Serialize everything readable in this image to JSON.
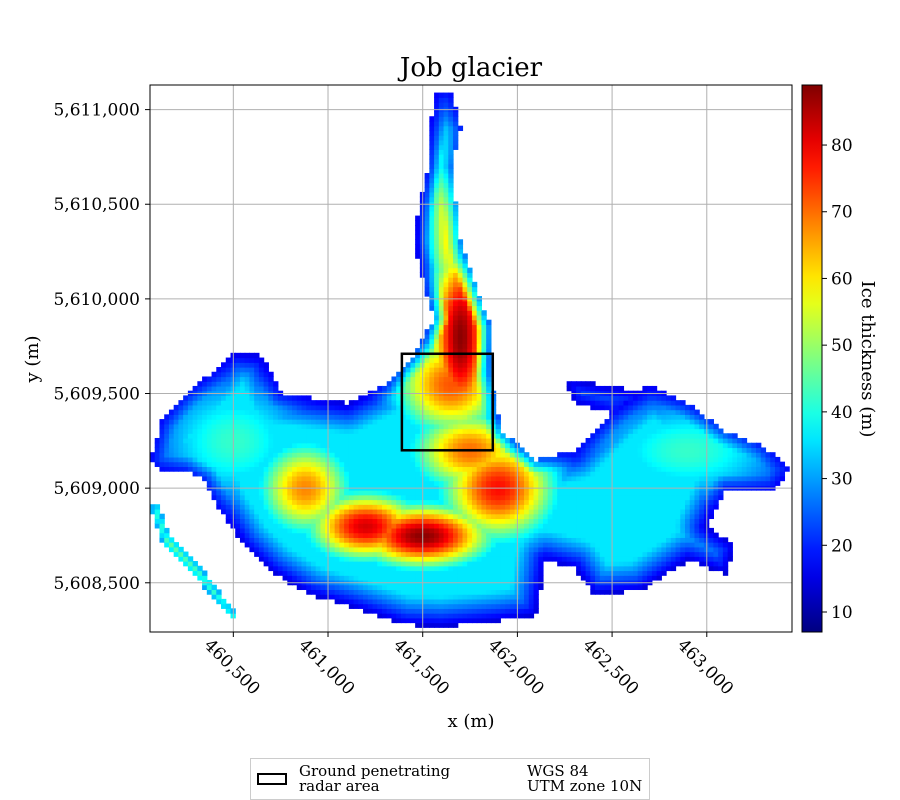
{
  "chart_data": {
    "type": "heatmap",
    "title": "Job glacier",
    "xlabel": "x (m)",
    "ylabel": "y (m)",
    "xlim": [
      460060,
      463450
    ],
    "ylim": [
      5608240,
      5611130
    ],
    "x_ticks": [
      460500,
      461000,
      461500,
      462000,
      462500,
      463000
    ],
    "x_tick_labels": [
      "460,500",
      "461,000",
      "461,500",
      "462,000",
      "462,500",
      "463,000"
    ],
    "y_ticks": [
      5608500,
      5609000,
      5609500,
      5610000,
      5610500,
      5611000
    ],
    "y_tick_labels": [
      "5,608,500",
      "5,609,000",
      "5,609,500",
      "5,610,000",
      "5,610,500",
      "5,611,000"
    ],
    "grid": true,
    "colormap": "jet",
    "colorbar": {
      "label": "Ice thickness (m)",
      "range": [
        7,
        89
      ],
      "ticks": [
        10,
        20,
        30,
        40,
        50,
        60,
        70,
        80
      ],
      "tick_labels": [
        "10",
        "20",
        "30",
        "40",
        "50",
        "60",
        "70",
        "80"
      ]
    },
    "ice_thickness_field": {
      "units": "m",
      "outline_points_m": [
        [
          461560,
          5611100
        ],
        [
          461650,
          5611100
        ],
        [
          461700,
          5610900
        ],
        [
          461650,
          5610700
        ],
        [
          461700,
          5610300
        ],
        [
          461800,
          5610000
        ],
        [
          461860,
          5609850
        ],
        [
          461850,
          5609600
        ],
        [
          461920,
          5609300
        ],
        [
          462100,
          5609150
        ],
        [
          462300,
          5609200
        ],
        [
          462500,
          5609400
        ],
        [
          462700,
          5609550
        ],
        [
          462900,
          5609450
        ],
        [
          463100,
          5609300
        ],
        [
          463300,
          5609220
        ],
        [
          463440,
          5609100
        ],
        [
          463350,
          5608990
        ],
        [
          463100,
          5609000
        ],
        [
          463000,
          5608800
        ],
        [
          463150,
          5608700
        ],
        [
          463100,
          5608550
        ],
        [
          462900,
          5608620
        ],
        [
          462650,
          5608460
        ],
        [
          462400,
          5608440
        ],
        [
          462300,
          5608580
        ],
        [
          462150,
          5608620
        ],
        [
          462100,
          5608330
        ],
        [
          461900,
          5608300
        ],
        [
          461600,
          5608270
        ],
        [
          461400,
          5608280
        ],
        [
          461100,
          5608380
        ],
        [
          460900,
          5608440
        ],
        [
          460700,
          5608560
        ],
        [
          460550,
          5608700
        ],
        [
          460420,
          5608900
        ],
        [
          460350,
          5609050
        ],
        [
          460250,
          5609100
        ],
        [
          460100,
          5609100
        ],
        [
          460060,
          5609150
        ],
        [
          460120,
          5609350
        ],
        [
          460250,
          5609500
        ],
        [
          460400,
          5609620
        ],
        [
          460500,
          5609720
        ],
        [
          460650,
          5609700
        ],
        [
          460750,
          5609500
        ],
        [
          461100,
          5609450
        ],
        [
          461300,
          5609550
        ],
        [
          461450,
          5609700
        ],
        [
          461560,
          5609900
        ],
        [
          461500,
          5610100
        ],
        [
          461450,
          5610300
        ],
        [
          461480,
          5610500
        ],
        [
          461530,
          5610700
        ],
        [
          461540,
          5610900
        ]
      ],
      "western_streak_m": [
        [
          460060,
          5608900
        ],
        [
          460130,
          5608700
        ],
        [
          460300,
          5608530
        ],
        [
          460500,
          5608300
        ],
        [
          460520,
          5608330
        ],
        [
          460330,
          5608580
        ],
        [
          460160,
          5608760
        ],
        [
          460100,
          5608920
        ]
      ],
      "northeast_lobe_m": [
        [
          462250,
          5609580
        ],
        [
          462600,
          5609520
        ],
        [
          462700,
          5609450
        ],
        [
          462500,
          5609400
        ],
        [
          462300,
          5609450
        ]
      ],
      "thickness_peaks_m": [
        {
          "x": 461700,
          "y": 5609800,
          "thickness": 88,
          "sx": 120,
          "sy": 380
        },
        {
          "x": 461650,
          "y": 5609550,
          "thickness": 72,
          "sx": 220,
          "sy": 200
        },
        {
          "x": 461500,
          "y": 5608750,
          "thickness": 88,
          "sx": 260,
          "sy": 120
        },
        {
          "x": 461200,
          "y": 5608800,
          "thickness": 82,
          "sx": 220,
          "sy": 130
        },
        {
          "x": 461900,
          "y": 5609000,
          "thickness": 78,
          "sx": 220,
          "sy": 200
        },
        {
          "x": 460880,
          "y": 5609000,
          "thickness": 68,
          "sx": 180,
          "sy": 180
        },
        {
          "x": 461650,
          "y": 5610400,
          "thickness": 62,
          "sx": 90,
          "sy": 380
        },
        {
          "x": 461750,
          "y": 5609200,
          "thickness": 70,
          "sx": 230,
          "sy": 160
        },
        {
          "x": 462900,
          "y": 5609200,
          "thickness": 42,
          "sx": 380,
          "sy": 200
        },
        {
          "x": 460500,
          "y": 5609250,
          "thickness": 42,
          "sx": 300,
          "sy": 250
        }
      ]
    },
    "radar_area_box_m": {
      "x0": 461390,
      "x1": 461870,
      "y0": 5609200,
      "y1": 5609710
    }
  },
  "legend": {
    "box_label_line1": "Ground penetrating",
    "box_label_line2": "radar area",
    "crs_line1": "WGS 84",
    "crs_line2": "UTM zone 10N"
  },
  "colors": {
    "grid": "#b0b0b0",
    "radar_box": "#000000"
  }
}
